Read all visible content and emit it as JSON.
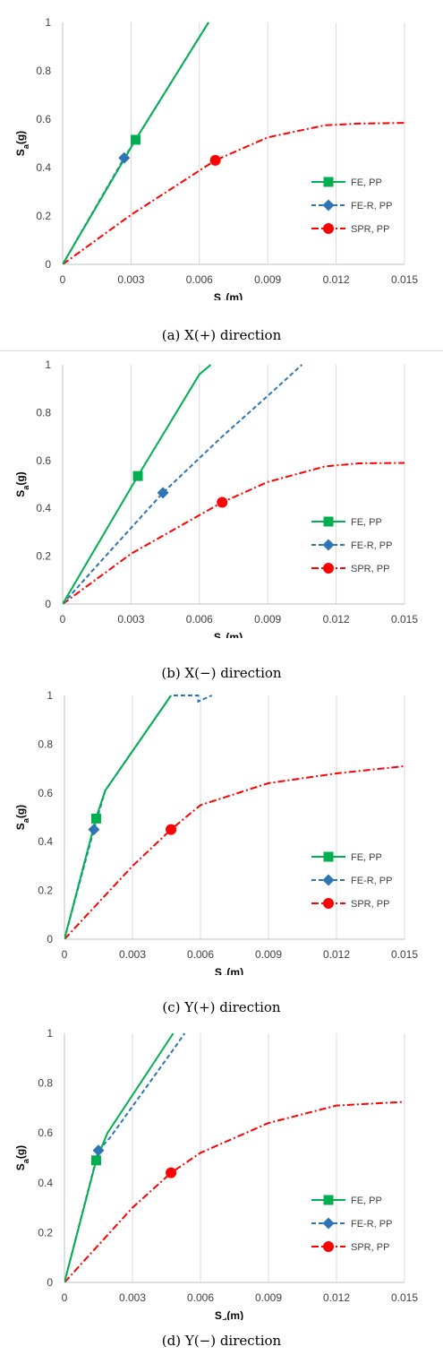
{
  "chart_data": [
    {
      "type": "line",
      "caption": "(a) X(+) direction",
      "xlabel": "S",
      "xlabel_sub": "d",
      "xlabel_unit": "(m)",
      "ylabel": "S",
      "ylabel_sub": "a",
      "ylabel_unit": "(g)",
      "xlim": [
        0,
        0.015
      ],
      "ylim": [
        0,
        1
      ],
      "xticks": [
        "0",
        "0.003",
        "0.006",
        "0.009",
        "0.012",
        "0.015"
      ],
      "yticks": [
        "0",
        "0.2",
        "0.4",
        "0.6",
        "0.8",
        "1"
      ],
      "grid": "vertical",
      "legend": "lower-right",
      "series": [
        {
          "name": "FE, PP",
          "color": "#00b050",
          "dash": "solid",
          "marker": "square",
          "x": [
            0,
            0.0032,
            0.0064
          ],
          "y": [
            0,
            0.515,
            1.0
          ],
          "marker_at": [
            0.0032,
            0.515
          ]
        },
        {
          "name": "FE-R, PP",
          "color": "#2e75b6",
          "dash": "dashed",
          "marker": "diamond",
          "x": [
            0,
            0.0027,
            0.0064
          ],
          "y": [
            0,
            0.44,
            1.0
          ],
          "marker_at": [
            0.0027,
            0.44
          ]
        },
        {
          "name": "SPR, PP",
          "color": "#ff0000",
          "dash": "dashdot",
          "marker": "circle",
          "x": [
            0,
            0.003,
            0.0067,
            0.009,
            0.0115,
            0.013,
            0.015
          ],
          "y": [
            0,
            0.205,
            0.43,
            0.525,
            0.575,
            0.582,
            0.585
          ],
          "marker_at": [
            0.0067,
            0.43
          ]
        }
      ]
    },
    {
      "type": "line",
      "caption": "(b) X(−) direction",
      "xlabel": "S",
      "xlabel_sub": "d",
      "xlabel_unit": "(m)",
      "ylabel": "S",
      "ylabel_sub": "a",
      "ylabel_unit": "(g)",
      "xlim": [
        0,
        0.015
      ],
      "ylim": [
        0,
        1
      ],
      "xticks": [
        "0",
        "0.003",
        "0.006",
        "0.009",
        "0.012",
        "0.015"
      ],
      "yticks": [
        "0",
        "0.2",
        "0.4",
        "0.6",
        "0.8",
        "1"
      ],
      "grid": "vertical",
      "legend": "lower-right",
      "series": [
        {
          "name": "FE, PP",
          "color": "#00b050",
          "dash": "solid",
          "marker": "square",
          "x": [
            0,
            0.0033,
            0.006,
            0.0065
          ],
          "y": [
            0,
            0.535,
            0.96,
            1.0
          ],
          "marker_at": [
            0.0033,
            0.535
          ]
        },
        {
          "name": "FE-R, PP",
          "color": "#2e75b6",
          "dash": "dashed",
          "marker": "diamond",
          "x": [
            0,
            0.0015,
            0.0044,
            0.007,
            0.009,
            0.0105
          ],
          "y": [
            0,
            0.16,
            0.465,
            0.7,
            0.87,
            1.0
          ],
          "marker_at": [
            0.0044,
            0.465
          ]
        },
        {
          "name": "SPR, PP",
          "color": "#ff0000",
          "dash": "dashdot",
          "marker": "circle",
          "x": [
            0,
            0.003,
            0.007,
            0.009,
            0.0115,
            0.013,
            0.015
          ],
          "y": [
            0,
            0.21,
            0.425,
            0.51,
            0.575,
            0.588,
            0.59
          ],
          "marker_at": [
            0.007,
            0.425
          ]
        }
      ]
    },
    {
      "type": "line",
      "caption": "(c) Y(+) direction",
      "xlabel": "S",
      "xlabel_sub": "d",
      "xlabel_unit": "(m)",
      "ylabel": "S",
      "ylabel_sub": "a",
      "ylabel_unit": "(g)",
      "xlim": [
        0,
        0.015
      ],
      "ylim": [
        0,
        1
      ],
      "xticks": [
        "0",
        "0.003",
        "0.006",
        "0.009",
        "0.012",
        "0.015"
      ],
      "yticks": [
        "0",
        "0.2",
        "0.4",
        "0.6",
        "0.8",
        "1"
      ],
      "grid": "vertical",
      "legend": "lower-right",
      "series": [
        {
          "name": "FE, PP",
          "color": "#00b050",
          "dash": "solid",
          "marker": "square",
          "x": [
            0,
            0.0014,
            0.0018,
            0.0047
          ],
          "y": [
            0,
            0.5,
            0.61,
            1.0
          ],
          "marker_at": [
            0.0014,
            0.495
          ]
        },
        {
          "name": "FE-R, PP",
          "color": "#2e75b6",
          "dash": "dashed",
          "marker": "diamond",
          "x": [
            0,
            0.0013,
            0.0018,
            0.0047,
            0.0059,
            0.0059,
            0.0065
          ],
          "y": [
            0,
            0.45,
            0.61,
            1.0,
            1.0,
            0.975,
            1.0
          ],
          "marker_at": [
            0.0013,
            0.45
          ]
        },
        {
          "name": "SPR, PP",
          "color": "#ff0000",
          "dash": "dashdot",
          "marker": "circle",
          "x": [
            0,
            0.003,
            0.0047,
            0.006,
            0.009,
            0.012,
            0.015
          ],
          "y": [
            0,
            0.3,
            0.45,
            0.55,
            0.64,
            0.68,
            0.71
          ],
          "marker_at": [
            0.0047,
            0.45
          ]
        }
      ]
    },
    {
      "type": "line",
      "caption": "(d) Y(−) direction",
      "xlabel": "S",
      "xlabel_sub": "d",
      "xlabel_unit": "(m)",
      "ylabel": "S",
      "ylabel_sub": "a",
      "ylabel_unit": "(g)",
      "xlim": [
        0,
        0.015
      ],
      "ylim": [
        0,
        1
      ],
      "xticks": [
        "0",
        "0.003",
        "0.006",
        "0.009",
        "0.012",
        "0.015"
      ],
      "yticks": [
        "0",
        "0.2",
        "0.4",
        "0.6",
        "0.8",
        "1"
      ],
      "grid": "vertical",
      "legend": "lower-right",
      "series": [
        {
          "name": "FE, PP",
          "color": "#00b050",
          "dash": "solid",
          "marker": "square",
          "x": [
            0,
            0.0014,
            0.0019,
            0.0048
          ],
          "y": [
            0,
            0.49,
            0.6,
            1.0
          ],
          "marker_at": [
            0.0014,
            0.49
          ]
        },
        {
          "name": "FE-R, PP",
          "color": "#2e75b6",
          "dash": "dashed",
          "marker": "diamond",
          "x": [
            0,
            0.0015,
            0.002,
            0.005,
            0.0053
          ],
          "y": [
            0,
            0.53,
            0.58,
            0.96,
            1.0
          ],
          "marker_at": [
            0.0015,
            0.53
          ]
        },
        {
          "name": "SPR, PP",
          "color": "#ff0000",
          "dash": "dashdot",
          "marker": "circle",
          "x": [
            0,
            0.003,
            0.0047,
            0.006,
            0.009,
            0.012,
            0.015
          ],
          "y": [
            0,
            0.3,
            0.44,
            0.52,
            0.64,
            0.71,
            0.725
          ],
          "marker_at": [
            0.0047,
            0.44
          ]
        }
      ]
    }
  ]
}
